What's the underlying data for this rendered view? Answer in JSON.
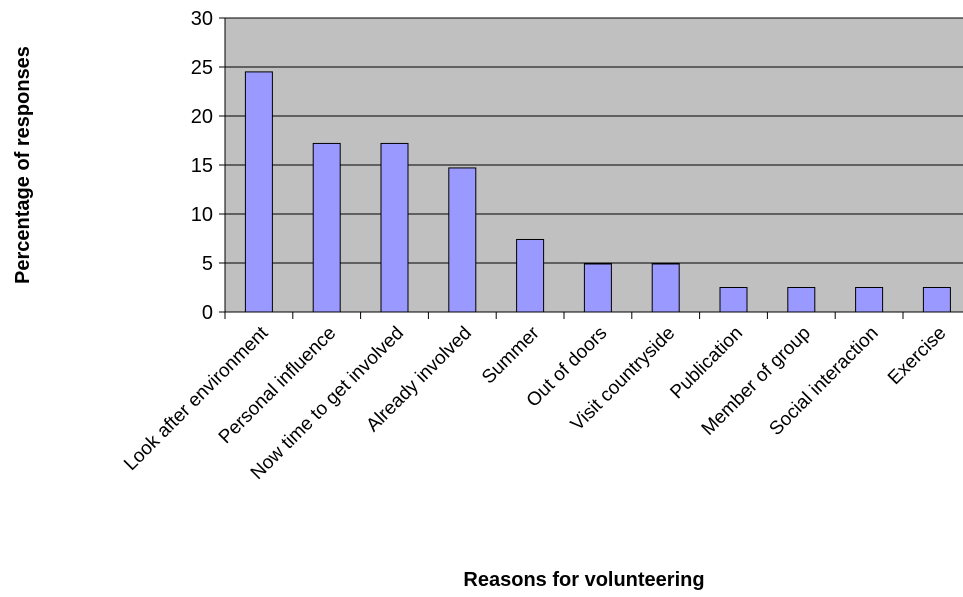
{
  "chart_data": {
    "type": "bar",
    "title": "",
    "xlabel": "Reasons for volunteering",
    "ylabel": "Percentage of responses",
    "ylim": [
      0,
      30
    ],
    "yticks": [
      0,
      5,
      10,
      15,
      20,
      25,
      30
    ],
    "grid": true,
    "legend": "none",
    "categories": [
      "Look after environment",
      "Personal influence",
      "Now time to get involved",
      "Already involved",
      "Summer",
      "Out of doors",
      "Visit countryside",
      "Publication",
      "Member of group",
      "Social interaction",
      "Exercise"
    ],
    "values": [
      24.5,
      17.2,
      17.2,
      14.7,
      7.4,
      4.9,
      4.9,
      2.5,
      2.5,
      2.5,
      2.5
    ],
    "colors": {
      "plot_background": "#C0C0C0",
      "bar_fill": "#9999FF",
      "bar_stroke": "#000000",
      "gridline": "#000000"
    }
  }
}
